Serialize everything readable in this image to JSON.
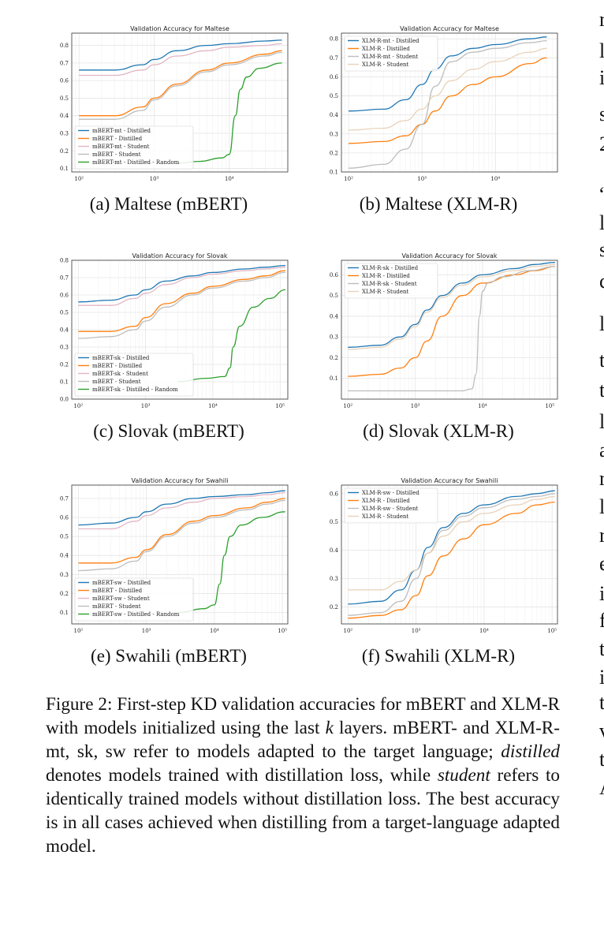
{
  "subcaptions": {
    "a": "(a) Maltese (mBERT)",
    "b": "(b) Maltese (XLM-R)",
    "c": "(c) Slovak (mBERT)",
    "d": "(d) Slovak (XLM-R)",
    "e": "(e) Swahili (mBERT)",
    "f": "(f) Swahili (XLM-R)"
  },
  "caption": {
    "label": "Figure 2:",
    "seg1": " First-step KD validation accuracies for mBERT and XLM-R with models initialized using the last ",
    "k": "k",
    "seg2": " layers.  mBERT- and XLM-R-mt, sk, sw refer to models adapted to the target language; ",
    "distilled": "distilled",
    "seg3": " denotes models trained with distillation loss, while ",
    "student": "student",
    "seg4": " refers to identically trained models without distillation loss. The best accuracy is in all cases achieved when distilling from a target-language adapted model."
  },
  "right_column_fragments": [
    "r",
    "l",
    "i",
    "s",
    "2",
    "“",
    "l",
    "s",
    "c",
    "l",
    "t",
    "t",
    "l",
    "a",
    "r",
    "l",
    "r",
    "e",
    "i",
    "f",
    "t",
    "i",
    "t",
    "v",
    "t",
    "A"
  ],
  "colors": {
    "blue": "#1f77b4",
    "orange": "#ff7f0e",
    "pink": "#e2b6c4",
    "tan": "#e8d2b8",
    "gray": "#bdbdbd",
    "green": "#2ca02c"
  },
  "chart_data": [
    {
      "type": "line",
      "title": "Validation Accuracy for Maltese",
      "xscale": "log",
      "xlim": [
        80,
        60000
      ],
      "ylim": [
        0.08,
        0.87
      ],
      "xticks": [
        100,
        1000,
        10000
      ],
      "xtick_labels": [
        "10²",
        "10³",
        "10⁴"
      ],
      "yticks": [
        0.1,
        0.2,
        0.3,
        0.4,
        0.5,
        0.6,
        0.7,
        0.8
      ],
      "ytick_labels": [
        "0.1",
        "0.2",
        "0.3",
        "0.4",
        "0.5",
        "0.6",
        "0.7",
        "0.8"
      ],
      "grid": true,
      "legend": "lower-left",
      "series": [
        {
          "name": "mBERT-mt - Distilled",
          "color": "blue",
          "x": [
            100,
            300,
            700,
            1000,
            2000,
            5000,
            10000,
            30000,
            50000
          ],
          "y": [
            0.66,
            0.66,
            0.69,
            0.72,
            0.77,
            0.8,
            0.81,
            0.825,
            0.83
          ]
        },
        {
          "name": "mBERT - Distilled",
          "color": "orange",
          "x": [
            100,
            300,
            700,
            1000,
            2000,
            5000,
            10000,
            30000,
            50000
          ],
          "y": [
            0.4,
            0.4,
            0.45,
            0.5,
            0.58,
            0.66,
            0.7,
            0.75,
            0.77
          ]
        },
        {
          "name": "mBERT-mt - Student",
          "color": "pink",
          "x": [
            100,
            300,
            700,
            1000,
            2000,
            5000,
            10000,
            30000,
            50000
          ],
          "y": [
            0.63,
            0.63,
            0.66,
            0.69,
            0.74,
            0.77,
            0.79,
            0.8,
            0.81
          ]
        },
        {
          "name": "mBERT - Student",
          "color": "gray",
          "x": [
            100,
            300,
            700,
            1000,
            2000,
            5000,
            10000,
            30000,
            50000
          ],
          "y": [
            0.38,
            0.38,
            0.43,
            0.49,
            0.57,
            0.65,
            0.69,
            0.74,
            0.76
          ]
        },
        {
          "name": "mBERT-mt - Distilled - Random",
          "color": "green",
          "x": [
            2000,
            4000,
            8000,
            10000,
            12000,
            14000,
            17000,
            25000,
            50000
          ],
          "y": [
            0.13,
            0.14,
            0.16,
            0.18,
            0.4,
            0.55,
            0.62,
            0.67,
            0.7
          ]
        }
      ]
    },
    {
      "type": "line",
      "title": "Validation Accuracy for Maltese",
      "xscale": "log",
      "xlim": [
        80,
        70000
      ],
      "ylim": [
        0.1,
        0.83
      ],
      "xticks": [
        100,
        1000,
        10000
      ],
      "xtick_labels": [
        "10²",
        "10³",
        "10⁴"
      ],
      "yticks": [
        0.1,
        0.2,
        0.3,
        0.4,
        0.5,
        0.6,
        0.7,
        0.8
      ],
      "ytick_labels": [
        "0.1",
        "0.2",
        "0.3",
        "0.4",
        "0.5",
        "0.6",
        "0.7",
        "0.8"
      ],
      "grid": true,
      "legend": "upper-left",
      "series": [
        {
          "name": "XLM-R-mt - Distilled",
          "color": "blue",
          "x": [
            100,
            300,
            600,
            1000,
            1500,
            2500,
            5000,
            10000,
            30000,
            50000
          ],
          "y": [
            0.42,
            0.43,
            0.48,
            0.56,
            0.64,
            0.71,
            0.75,
            0.77,
            0.8,
            0.81
          ]
        },
        {
          "name": "XLM-R - Distilled",
          "color": "orange",
          "x": [
            100,
            300,
            600,
            1000,
            1500,
            2500,
            5000,
            10000,
            30000,
            50000
          ],
          "y": [
            0.25,
            0.26,
            0.29,
            0.35,
            0.42,
            0.5,
            0.56,
            0.6,
            0.67,
            0.7
          ]
        },
        {
          "name": "XLM-R-mt - Student",
          "color": "gray",
          "x": [
            100,
            300,
            600,
            1000,
            1500,
            2500,
            5000,
            10000,
            30000,
            50000
          ],
          "y": [
            0.12,
            0.14,
            0.22,
            0.35,
            0.55,
            0.68,
            0.73,
            0.75,
            0.78,
            0.79
          ]
        },
        {
          "name": "XLM-R - Student",
          "color": "tan",
          "x": [
            100,
            300,
            600,
            1000,
            1500,
            2500,
            5000,
            10000,
            30000,
            50000
          ],
          "y": [
            0.32,
            0.33,
            0.37,
            0.43,
            0.5,
            0.58,
            0.64,
            0.68,
            0.73,
            0.75
          ]
        }
      ]
    },
    {
      "type": "line",
      "title": "Validation Accuracy for Slovak",
      "xscale": "log",
      "xlim": [
        80,
        130000
      ],
      "ylim": [
        0.0,
        0.8
      ],
      "xticks": [
        100,
        1000,
        10000,
        100000
      ],
      "xtick_labels": [
        "10²",
        "10³",
        "10⁴",
        "10⁵"
      ],
      "yticks": [
        0.0,
        0.1,
        0.2,
        0.3,
        0.4,
        0.5,
        0.6,
        0.7,
        0.8
      ],
      "ytick_labels": [
        "0.0",
        "0.1",
        "0.2",
        "0.3",
        "0.4",
        "0.5",
        "0.6",
        "0.7",
        "0.8"
      ],
      "grid": true,
      "legend": "lower-left",
      "series": [
        {
          "name": "mBERT-sk - Distilled",
          "color": "blue",
          "x": [
            100,
            300,
            700,
            1000,
            2000,
            5000,
            10000,
            30000,
            60000,
            120000
          ],
          "y": [
            0.56,
            0.57,
            0.6,
            0.63,
            0.68,
            0.71,
            0.73,
            0.75,
            0.76,
            0.77
          ]
        },
        {
          "name": "mBERT - Distilled",
          "color": "orange",
          "x": [
            100,
            300,
            700,
            1000,
            2000,
            5000,
            10000,
            30000,
            60000,
            120000
          ],
          "y": [
            0.39,
            0.39,
            0.42,
            0.47,
            0.55,
            0.61,
            0.65,
            0.69,
            0.71,
            0.74
          ]
        },
        {
          "name": "mBERT-sk - Student",
          "color": "pink",
          "x": [
            100,
            300,
            700,
            1000,
            2000,
            5000,
            10000,
            30000,
            60000,
            120000
          ],
          "y": [
            0.54,
            0.54,
            0.58,
            0.61,
            0.66,
            0.7,
            0.72,
            0.74,
            0.75,
            0.76
          ]
        },
        {
          "name": "mBERT - Student",
          "color": "gray",
          "x": [
            100,
            300,
            700,
            1000,
            2000,
            5000,
            10000,
            30000,
            60000,
            120000
          ],
          "y": [
            0.35,
            0.36,
            0.4,
            0.45,
            0.53,
            0.6,
            0.64,
            0.68,
            0.7,
            0.73
          ]
        },
        {
          "name": "mBERT-sk - Distilled - Random",
          "color": "green",
          "x": [
            3000,
            8000,
            15000,
            18000,
            20000,
            25000,
            40000,
            70000,
            120000
          ],
          "y": [
            0.1,
            0.12,
            0.13,
            0.18,
            0.3,
            0.42,
            0.53,
            0.58,
            0.63
          ]
        }
      ]
    },
    {
      "type": "line",
      "title": "Validation Accuracy for Slovak",
      "xscale": "log",
      "xlim": [
        80,
        130000
      ],
      "ylim": [
        0.0,
        0.67
      ],
      "xticks": [
        100,
        1000,
        10000,
        100000
      ],
      "xtick_labels": [
        "10²",
        "10³",
        "10⁴",
        "10⁵"
      ],
      "yticks": [
        0.1,
        0.2,
        0.3,
        0.4,
        0.5,
        0.6
      ],
      "ytick_labels": [
        "0.1",
        "0.2",
        "0.3",
        "0.4",
        "0.5",
        "0.6"
      ],
      "grid": true,
      "legend": "upper-left",
      "series": [
        {
          "name": "XLM-R-sk - Distilled",
          "color": "blue",
          "x": [
            100,
            300,
            600,
            1000,
            1500,
            2500,
            5000,
            10000,
            30000,
            60000,
            120000
          ],
          "y": [
            0.25,
            0.26,
            0.3,
            0.36,
            0.43,
            0.5,
            0.56,
            0.6,
            0.63,
            0.65,
            0.66
          ]
        },
        {
          "name": "XLM-R - Distilled",
          "color": "orange",
          "x": [
            100,
            300,
            600,
            1000,
            1500,
            2500,
            5000,
            10000,
            30000,
            60000,
            120000
          ],
          "y": [
            0.11,
            0.12,
            0.15,
            0.2,
            0.28,
            0.4,
            0.5,
            0.56,
            0.6,
            0.62,
            0.64
          ]
        },
        {
          "name": "XLM-R-sk - Student",
          "color": "gray",
          "x": [
            100,
            1000,
            5000,
            7000,
            8000,
            9000,
            10000,
            12000,
            20000,
            50000,
            120000
          ],
          "y": [
            0.04,
            0.04,
            0.04,
            0.05,
            0.12,
            0.4,
            0.52,
            0.56,
            0.59,
            0.62,
            0.64
          ]
        },
        {
          "name": "XLM-R - Student",
          "color": "tan",
          "x": [
            100,
            300,
            600,
            1000,
            1500,
            2500,
            5000,
            10000,
            30000,
            60000,
            120000
          ],
          "y": [
            0.24,
            0.25,
            0.29,
            0.35,
            0.42,
            0.49,
            0.55,
            0.59,
            0.62,
            0.64,
            0.65
          ]
        }
      ]
    },
    {
      "type": "line",
      "title": "Validation Accuracy for Swahili",
      "xscale": "log",
      "xlim": [
        80,
        120000
      ],
      "ylim": [
        0.04,
        0.77
      ],
      "xticks": [
        100,
        1000,
        10000,
        100000
      ],
      "xtick_labels": [
        "10²",
        "10³",
        "10⁴",
        "10⁵"
      ],
      "yticks": [
        0.1,
        0.2,
        0.3,
        0.4,
        0.5,
        0.6,
        0.7
      ],
      "ytick_labels": [
        "0.1",
        "0.2",
        "0.3",
        "0.4",
        "0.5",
        "0.6",
        "0.7"
      ],
      "grid": true,
      "legend": "lower-left",
      "series": [
        {
          "name": "mBERT-sw - Distilled",
          "color": "blue",
          "x": [
            100,
            300,
            700,
            1000,
            2000,
            5000,
            10000,
            30000,
            60000,
            110000
          ],
          "y": [
            0.56,
            0.57,
            0.6,
            0.63,
            0.67,
            0.7,
            0.71,
            0.72,
            0.73,
            0.74
          ]
        },
        {
          "name": "mBERT - Distilled",
          "color": "orange",
          "x": [
            100,
            300,
            700,
            1000,
            2000,
            5000,
            10000,
            30000,
            60000,
            110000
          ],
          "y": [
            0.36,
            0.36,
            0.39,
            0.43,
            0.51,
            0.58,
            0.61,
            0.65,
            0.68,
            0.7
          ]
        },
        {
          "name": "mBERT-sw - Student",
          "color": "pink",
          "x": [
            100,
            300,
            700,
            1000,
            2000,
            5000,
            10000,
            30000,
            60000,
            110000
          ],
          "y": [
            0.54,
            0.54,
            0.58,
            0.61,
            0.65,
            0.68,
            0.7,
            0.71,
            0.72,
            0.73
          ]
        },
        {
          "name": "mBERT - Student",
          "color": "gray",
          "x": [
            100,
            300,
            700,
            1000,
            2000,
            5000,
            10000,
            30000,
            60000,
            110000
          ],
          "y": [
            0.32,
            0.33,
            0.37,
            0.42,
            0.5,
            0.57,
            0.6,
            0.64,
            0.67,
            0.69
          ]
        },
        {
          "name": "mBERT-sw - Distilled - Random",
          "color": "green",
          "x": [
            3000,
            7000,
            10000,
            12000,
            14000,
            17000,
            25000,
            50000,
            110000
          ],
          "y": [
            0.1,
            0.12,
            0.14,
            0.25,
            0.4,
            0.5,
            0.56,
            0.6,
            0.63
          ]
        }
      ]
    },
    {
      "type": "line",
      "title": "Validation Accuracy for Swahili",
      "xscale": "log",
      "xlim": [
        80,
        120000
      ],
      "ylim": [
        0.14,
        0.63
      ],
      "xticks": [
        100,
        1000,
        10000,
        100000
      ],
      "xtick_labels": [
        "10²",
        "10³",
        "10⁴",
        "10⁵"
      ],
      "yticks": [
        0.2,
        0.3,
        0.4,
        0.5,
        0.6
      ],
      "ytick_labels": [
        "0.2",
        "0.3",
        "0.4",
        "0.5",
        "0.6"
      ],
      "grid": true,
      "legend": "upper-left",
      "series": [
        {
          "name": "XLM-R-sw - Distilled",
          "color": "blue",
          "x": [
            100,
            300,
            600,
            1000,
            1500,
            2500,
            5000,
            10000,
            30000,
            60000,
            110000
          ],
          "y": [
            0.21,
            0.22,
            0.26,
            0.33,
            0.41,
            0.48,
            0.53,
            0.56,
            0.59,
            0.6,
            0.61
          ]
        },
        {
          "name": "XLM-R - Distilled",
          "color": "orange",
          "x": [
            100,
            300,
            600,
            1000,
            1500,
            2500,
            5000,
            10000,
            30000,
            60000,
            110000
          ],
          "y": [
            0.16,
            0.17,
            0.19,
            0.24,
            0.31,
            0.38,
            0.44,
            0.49,
            0.53,
            0.56,
            0.57
          ]
        },
        {
          "name": "XLM-R-sw - Student",
          "color": "gray",
          "x": [
            100,
            300,
            600,
            1000,
            1500,
            2500,
            5000,
            10000,
            30000,
            60000,
            110000
          ],
          "y": [
            0.17,
            0.18,
            0.22,
            0.3,
            0.39,
            0.47,
            0.52,
            0.55,
            0.58,
            0.59,
            0.6
          ]
        },
        {
          "name": "XLM-R - Student",
          "color": "tan",
          "x": [
            100,
            300,
            600,
            1000,
            1500,
            2500,
            5000,
            10000,
            30000,
            60000,
            110000
          ],
          "y": [
            0.26,
            0.26,
            0.29,
            0.33,
            0.39,
            0.45,
            0.5,
            0.53,
            0.56,
            0.58,
            0.59
          ]
        }
      ]
    }
  ]
}
